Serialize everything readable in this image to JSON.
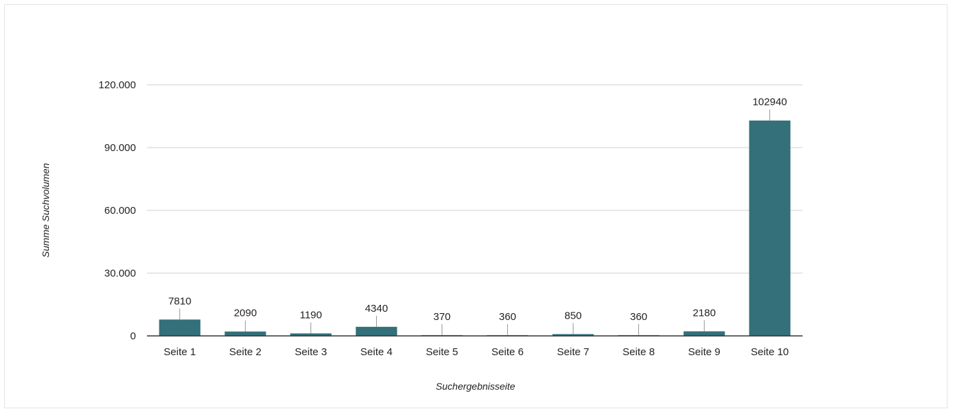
{
  "chart_data": {
    "type": "bar",
    "title": "",
    "xlabel": "Suchergebnisseite",
    "ylabel": "Summe Suchvolumen",
    "categories": [
      "Seite 1",
      "Seite 2",
      "Seite 3",
      "Seite 4",
      "Seite 5",
      "Seite 6",
      "Seite 7",
      "Seite 8",
      "Seite 9",
      "Seite 10"
    ],
    "values": [
      7810,
      2090,
      1190,
      4340,
      370,
      360,
      850,
      360,
      2180,
      102940
    ],
    "data_labels": [
      "7810",
      "2090",
      "1190",
      "4340",
      "370",
      "360",
      "850",
      "360",
      "2180",
      "102940"
    ],
    "ylim": [
      0,
      120000
    ],
    "yticks": [
      0,
      30000,
      60000,
      90000,
      120000
    ],
    "ytick_labels": [
      "0",
      "30.000",
      "60.000",
      "90.000",
      "120.000"
    ],
    "grid": true,
    "legend": "none",
    "colors": {
      "bar": "#33707a",
      "grid": "#cfcfcf",
      "axis": "#333333"
    }
  }
}
